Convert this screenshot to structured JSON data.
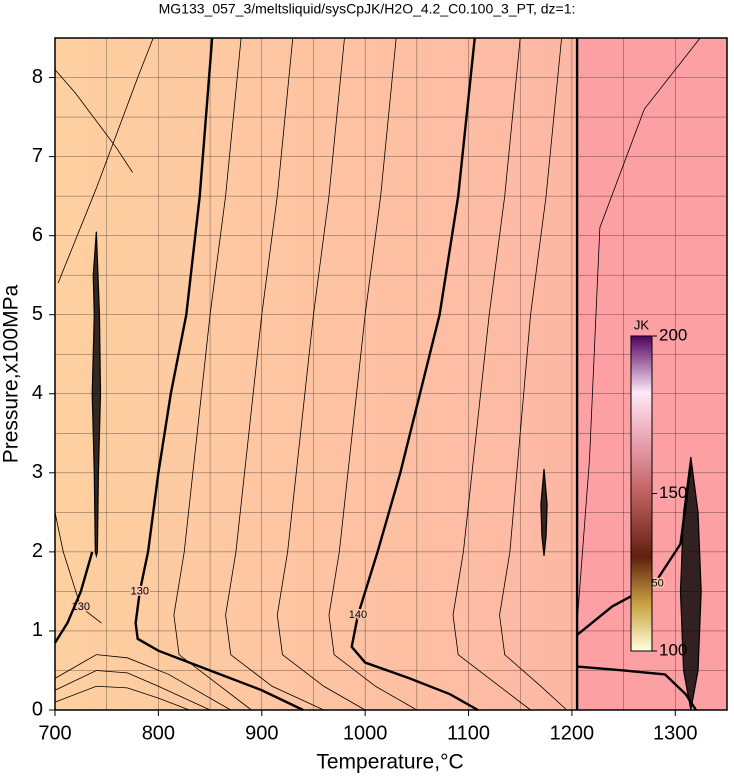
{
  "chart_data": {
    "type": "contour",
    "title": "MG133_057_3/meltsliquid/sysCpJK/H2O_4.2_C0.100_3_PT, dz=1:",
    "x_label": "Temperature,°C",
    "y_label": "Pressure,x100MPa",
    "xlim": [
      700,
      1350
    ],
    "ylim": [
      0,
      8.5
    ],
    "xticks": [
      700,
      800,
      900,
      1000,
      1100,
      1200,
      1300
    ],
    "yticks": [
      0,
      1,
      2,
      3,
      4,
      5,
      6,
      7,
      8
    ],
    "xgrid": [
      700,
      750,
      800,
      850,
      900,
      950,
      1000,
      1050,
      1100,
      1150,
      1200,
      1250,
      1300,
      1350
    ],
    "ygrid": [
      0,
      0.5,
      1,
      1.5,
      2,
      2.5,
      3,
      3.5,
      4,
      4.5,
      5,
      5.5,
      6,
      6.5,
      7,
      7.5,
      8,
      8.5
    ],
    "contours": [
      {
        "level": 130,
        "bold": true,
        "x": [
          852,
          840,
          827,
          812,
          800,
          790,
          782,
          778,
          780,
          800,
          850,
          900,
          940
        ],
        "y": [
          8.5,
          6.5,
          5,
          4,
          3,
          2,
          1.5,
          1.1,
          0.9,
          0.75,
          0.5,
          0.25,
          0
        ]
      },
      {
        "level": 140,
        "bold": true,
        "x": [
          1106,
          1090,
          1072,
          1034,
          1012,
          993,
          987,
          1000,
          1043,
          1082,
          1109
        ],
        "y": [
          8.5,
          6.5,
          5,
          3,
          2,
          1.2,
          0.8,
          0.6,
          0.4,
          0.2,
          0
        ]
      },
      {
        "level": 150,
        "bold": true,
        "x": [
          1205,
          1239,
          1280,
          1305,
          1315
        ],
        "y": [
          0.95,
          1.31,
          1.6,
          2.1,
          3.1
        ]
      },
      {
        "level": 130,
        "bold": false,
        "x": [
          700,
          708,
          725,
          745
        ],
        "y": [
          2.5,
          2.0,
          1.3,
          1.1
        ]
      },
      {
        "bold": true,
        "x": [
          700,
          712,
          725,
          736
        ],
        "y": [
          0.85,
          1.1,
          1.5,
          2.0
        ]
      },
      {
        "bold": true,
        "x": [
          1205,
          1250,
          1290,
          1310,
          1320
        ],
        "y": [
          0.55,
          0.5,
          0.45,
          0.2,
          0
        ]
      },
      {
        "bold": false,
        "x": [
          880,
          865,
          850,
          825,
          815,
          820,
          860,
          890
        ],
        "y": [
          8.5,
          6.5,
          5,
          2,
          1.2,
          0.7,
          0.3,
          0
        ]
      },
      {
        "bold": false,
        "x": [
          930,
          915,
          900,
          875,
          865,
          870,
          910,
          960
        ],
        "y": [
          8.5,
          6.5,
          5,
          2,
          1.2,
          0.7,
          0.3,
          0
        ]
      },
      {
        "bold": false,
        "x": [
          980,
          965,
          950,
          925,
          915,
          920,
          960,
          1000
        ],
        "y": [
          8.5,
          6.5,
          5,
          2,
          1.2,
          0.7,
          0.3,
          0
        ]
      },
      {
        "bold": false,
        "x": [
          1030,
          1015,
          1000,
          975,
          965,
          970,
          1010,
          1050
        ],
        "y": [
          8.5,
          6.5,
          5,
          2,
          1.2,
          0.7,
          0.3,
          0
        ]
      },
      {
        "bold": false,
        "x": [
          1150,
          1135,
          1120,
          1095,
          1085,
          1090,
          1130,
          1160
        ],
        "y": [
          8.5,
          6.5,
          5,
          2,
          1.2,
          0.7,
          0.3,
          0
        ]
      },
      {
        "bold": false,
        "x": [
          1190,
          1175,
          1160,
          1140,
          1130,
          1135,
          1170,
          1195
        ],
        "y": [
          8.5,
          6.5,
          5,
          2,
          1.2,
          0.7,
          0.3,
          0
        ]
      },
      {
        "bold": false,
        "x": [
          703,
          740,
          780,
          795
        ],
        "y": [
          5.4,
          6.6,
          8.0,
          8.5
        ]
      },
      {
        "bold": false,
        "x": [
          700,
          720,
          760,
          775
        ],
        "y": [
          8.1,
          7.8,
          7.1,
          6.8
        ]
      },
      {
        "bold": false,
        "x": [
          1205,
          1217,
          1227,
          1270,
          1324
        ],
        "y": [
          1.1,
          3.17,
          6.1,
          7.6,
          8.5
        ]
      },
      {
        "bold": false,
        "x": [
          700,
          740,
          770,
          800,
          830
        ],
        "y": [
          0.1,
          0.3,
          0.28,
          0.15,
          0
        ]
      },
      {
        "bold": false,
        "x": [
          700,
          740,
          770,
          800,
          850
        ],
        "y": [
          0.25,
          0.5,
          0.47,
          0.3,
          0
        ]
      },
      {
        "bold": false,
        "x": [
          700,
          740,
          770,
          810,
          870
        ],
        "y": [
          0.4,
          0.7,
          0.66,
          0.45,
          0
        ]
      },
      {
        "bold": true,
        "x": [
          1205,
          1205
        ],
        "y": [
          0,
          8.5
        ]
      }
    ],
    "blobs": [
      {
        "x": [
          740,
          743,
          744,
          742,
          741,
          740,
          739,
          738,
          736,
          738,
          737,
          740
        ],
        "y": [
          6.05,
          5,
          4,
          3,
          2,
          1.95,
          2,
          3,
          4,
          5,
          5.5,
          6.05
        ]
      },
      {
        "x": [
          1173,
          1176,
          1175,
          1173,
          1171,
          1170,
          1173
        ],
        "y": [
          3.05,
          2.6,
          2.2,
          1.95,
          2.2,
          2.6,
          3.05
        ]
      },
      {
        "x": [
          1315,
          1322,
          1325,
          1322,
          1315,
          1308,
          1305,
          1308,
          1315
        ],
        "y": [
          3.2,
          2.5,
          1.5,
          0.5,
          0,
          0.5,
          1.5,
          2.5,
          3.2
        ]
      }
    ],
    "colorbar": {
      "label": "JK",
      "lim": [
        100,
        200
      ],
      "ticks": [
        100,
        150,
        200
      ]
    }
  }
}
